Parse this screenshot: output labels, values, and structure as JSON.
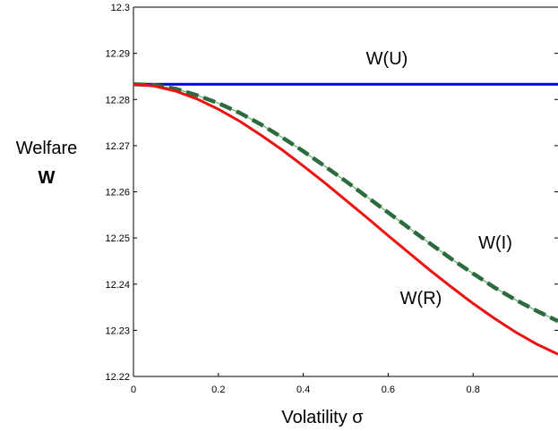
{
  "chart_data": {
    "type": "line",
    "title": "",
    "xlabel": "Volatility σ",
    "ylabel": "Welfare",
    "ylabel_symbol": "W",
    "xlim": [
      0,
      1.0
    ],
    "ylim": [
      12.22,
      12.3
    ],
    "x_ticks": [
      0,
      0.2,
      0.4,
      0.6,
      0.8
    ],
    "x_tick_labels": [
      "0",
      "0.2",
      "0.4",
      "0.6",
      "0.8"
    ],
    "y_ticks": [
      12.22,
      12.23,
      12.24,
      12.25,
      12.26,
      12.27,
      12.28,
      12.29,
      12.3
    ],
    "y_tick_labels": [
      "12.22",
      "12.23",
      "12.24",
      "12.25",
      "12.26",
      "12.27",
      "12.28",
      "12.29",
      "12.3"
    ],
    "grid": false,
    "legend": "none",
    "series": [
      {
        "name": "W(U)",
        "color": "#0000dd",
        "style": "solid",
        "x": [
          0,
          0.2,
          0.4,
          0.6,
          0.8,
          1.0
        ],
        "y": [
          12.2833,
          12.2833,
          12.2833,
          12.2833,
          12.2833,
          12.2833
        ]
      },
      {
        "name": "W(I)",
        "color": "#2d6a3e",
        "style": "dashed",
        "x": [
          0,
          0.05,
          0.1,
          0.15,
          0.2,
          0.25,
          0.3,
          0.35,
          0.4,
          0.45,
          0.5,
          0.55,
          0.6,
          0.65,
          0.7,
          0.75,
          0.8,
          0.85,
          0.9,
          0.95,
          1.0
        ],
        "y": [
          12.2833,
          12.2831,
          12.2823,
          12.2809,
          12.2792,
          12.2771,
          12.2746,
          12.2718,
          12.2688,
          12.2656,
          12.2623,
          12.2589,
          12.2555,
          12.2521,
          12.2487,
          12.2454,
          12.2423,
          12.2393,
          12.2366,
          12.2342,
          12.232
        ]
      },
      {
        "name": "W(R)",
        "color": "#ee1111",
        "style": "solid",
        "x": [
          0,
          0.05,
          0.1,
          0.15,
          0.2,
          0.25,
          0.3,
          0.35,
          0.4,
          0.45,
          0.5,
          0.55,
          0.6,
          0.65,
          0.7,
          0.75,
          0.8,
          0.85,
          0.9,
          0.95,
          1.0
        ],
        "y": [
          12.2833,
          12.2829,
          12.2818,
          12.2801,
          12.2779,
          12.2753,
          12.2723,
          12.2691,
          12.2656,
          12.262,
          12.2582,
          12.2544,
          12.2505,
          12.2467,
          12.2429,
          12.2393,
          12.2358,
          12.2326,
          12.2296,
          12.227,
          12.2248
        ]
      }
    ]
  }
}
